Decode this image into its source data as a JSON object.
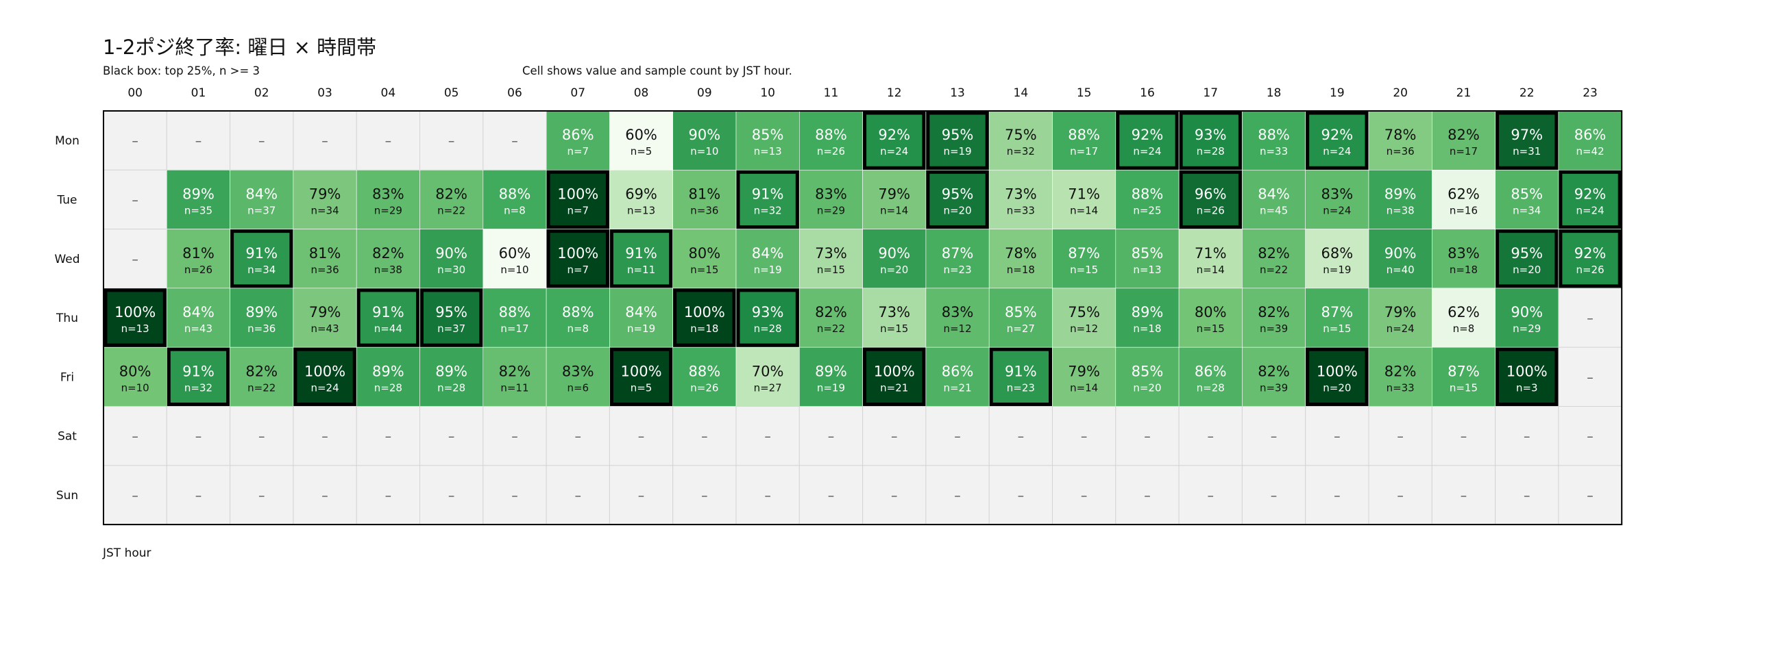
{
  "header": {
    "title": "1-2ポジ終了率: 曜日 × 時間帯",
    "subtitle_left": "Black box: top 25%, n >= 3",
    "subtitle_right": "Cell shows value and sample count by JST hour."
  },
  "chart_data": {
    "type": "heatmap",
    "title": "1-2ポジ終了率: 曜日 × 時間帯",
    "xlabel": "JST hour",
    "ylabel": "",
    "x": [
      "00",
      "01",
      "02",
      "03",
      "04",
      "05",
      "06",
      "07",
      "08",
      "09",
      "10",
      "11",
      "12",
      "13",
      "14",
      "15",
      "16",
      "17",
      "18",
      "19",
      "20",
      "21",
      "22",
      "23"
    ],
    "y": [
      "Mon",
      "Tue",
      "Wed",
      "Thu",
      "Fri",
      "Sat",
      "Sun"
    ],
    "values": [
      [
        null,
        null,
        null,
        null,
        null,
        null,
        null,
        86,
        60,
        90,
        85,
        88,
        92,
        95,
        75,
        88,
        92,
        93,
        88,
        92,
        78,
        82,
        97,
        86
      ],
      [
        null,
        89,
        84,
        79,
        83,
        82,
        88,
        100,
        69,
        81,
        91,
        83,
        79,
        95,
        73,
        71,
        88,
        96,
        84,
        83,
        89,
        62,
        85,
        92
      ],
      [
        null,
        81,
        91,
        81,
        82,
        90,
        60,
        100,
        91,
        80,
        84,
        73,
        90,
        87,
        78,
        87,
        85,
        71,
        82,
        68,
        90,
        83,
        95,
        92
      ],
      [
        100,
        84,
        89,
        79,
        91,
        95,
        88,
        88,
        84,
        100,
        93,
        82,
        73,
        83,
        85,
        75,
        89,
        80,
        82,
        87,
        79,
        62,
        90,
        null
      ],
      [
        80,
        91,
        82,
        100,
        89,
        89,
        82,
        83,
        100,
        88,
        70,
        89,
        100,
        86,
        91,
        79,
        85,
        86,
        82,
        100,
        82,
        87,
        100,
        null
      ],
      [
        null,
        null,
        null,
        null,
        null,
        null,
        null,
        null,
        null,
        null,
        null,
        null,
        null,
        null,
        null,
        null,
        null,
        null,
        null,
        null,
        null,
        null,
        null,
        null
      ],
      [
        null,
        null,
        null,
        null,
        null,
        null,
        null,
        null,
        null,
        null,
        null,
        null,
        null,
        null,
        null,
        null,
        null,
        null,
        null,
        null,
        null,
        null,
        null,
        null
      ]
    ],
    "counts": [
      [
        null,
        null,
        null,
        null,
        null,
        null,
        null,
        7,
        5,
        10,
        13,
        26,
        24,
        19,
        32,
        17,
        24,
        28,
        33,
        24,
        36,
        17,
        31,
        42
      ],
      [
        null,
        35,
        37,
        34,
        29,
        22,
        8,
        7,
        13,
        36,
        32,
        29,
        14,
        20,
        33,
        14,
        25,
        26,
        45,
        24,
        38,
        16,
        34,
        24
      ],
      [
        null,
        26,
        34,
        36,
        38,
        30,
        10,
        7,
        11,
        15,
        19,
        15,
        20,
        23,
        18,
        15,
        13,
        14,
        22,
        19,
        40,
        18,
        20,
        26
      ],
      [
        13,
        43,
        36,
        43,
        44,
        37,
        17,
        8,
        19,
        18,
        28,
        22,
        15,
        12,
        27,
        12,
        18,
        15,
        39,
        15,
        24,
        8,
        29,
        null
      ],
      [
        10,
        32,
        22,
        24,
        28,
        28,
        11,
        6,
        5,
        26,
        27,
        19,
        21,
        21,
        23,
        14,
        20,
        28,
        39,
        20,
        33,
        15,
        3,
        null
      ],
      [
        null,
        null,
        null,
        null,
        null,
        null,
        null,
        null,
        null,
        null,
        null,
        null,
        null,
        null,
        null,
        null,
        null,
        null,
        null,
        null,
        null,
        null,
        null,
        null
      ],
      [
        null,
        null,
        null,
        null,
        null,
        null,
        null,
        null,
        null,
        null,
        null,
        null,
        null,
        null,
        null,
        null,
        null,
        null,
        null,
        null,
        null,
        null,
        null,
        null
      ]
    ],
    "highlighted": [
      [
        0,
        12
      ],
      [
        0,
        13
      ],
      [
        0,
        16
      ],
      [
        0,
        17
      ],
      [
        0,
        19
      ],
      [
        0,
        22
      ],
      [
        1,
        7
      ],
      [
        1,
        10
      ],
      [
        1,
        13
      ],
      [
        1,
        17
      ],
      [
        1,
        23
      ],
      [
        2,
        2
      ],
      [
        2,
        7
      ],
      [
        2,
        8
      ],
      [
        2,
        22
      ],
      [
        2,
        23
      ],
      [
        3,
        0
      ],
      [
        3,
        4
      ],
      [
        3,
        5
      ],
      [
        3,
        9
      ],
      [
        3,
        10
      ],
      [
        4,
        1
      ],
      [
        4,
        3
      ],
      [
        4,
        8
      ],
      [
        4,
        12
      ],
      [
        4,
        14
      ],
      [
        4,
        19
      ],
      [
        4,
        22
      ]
    ],
    "missing_label": "–",
    "count_prefix": "n=",
    "value_suffix": "%",
    "colors": {
      "low": "#f4fbf1",
      "high": "#00441b",
      "empty": "#f2f2f2",
      "highlight_border": "#000000"
    }
  }
}
